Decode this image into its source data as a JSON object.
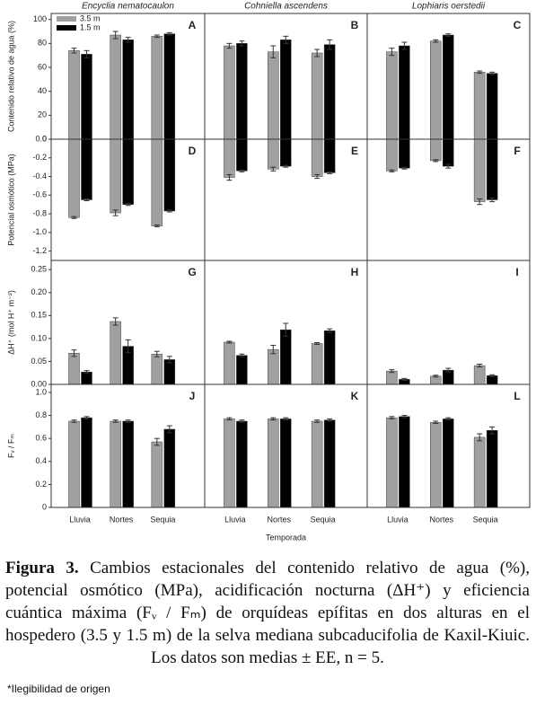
{
  "chart_data": [
    {
      "type": "bar",
      "label": "A",
      "title": "Encyclia nematocaulon",
      "ylabel": "Contenido relativo de agua (%)",
      "categories": [
        null,
        null,
        null
      ],
      "series": [
        {
          "name": "3.5 m",
          "color": "#a0a0a0",
          "values": [
            74,
            87,
            86
          ],
          "errors": [
            2,
            3,
            1
          ]
        },
        {
          "name": "1.5 m",
          "color": "#000000",
          "values": [
            71,
            83,
            88
          ],
          "errors": [
            3,
            2,
            1
          ]
        }
      ],
      "ylim": [
        0,
        105
      ],
      "yticks": [
        0,
        20,
        40,
        60,
        80,
        100
      ],
      "legend": "upper left"
    },
    {
      "type": "bar",
      "label": "B",
      "title": "Cohniella ascendens",
      "categories": [
        null,
        null,
        null
      ],
      "series": [
        {
          "color": "#a0a0a0",
          "values": [
            78,
            73,
            72
          ],
          "errors": [
            2,
            5,
            3
          ]
        },
        {
          "color": "#000000",
          "values": [
            80,
            83,
            79
          ],
          "errors": [
            2,
            3,
            4
          ]
        }
      ],
      "ylim": [
        0,
        105
      ]
    },
    {
      "type": "bar",
      "label": "C",
      "title": "Lophiaris oerstedii",
      "categories": [
        null,
        null,
        null
      ],
      "series": [
        {
          "color": "#a0a0a0",
          "values": [
            73,
            82,
            56
          ],
          "errors": [
            3,
            1,
            1
          ]
        },
        {
          "color": "#000000",
          "values": [
            78,
            87,
            55
          ],
          "errors": [
            3,
            1,
            1
          ]
        }
      ],
      "ylim": [
        0,
        105
      ]
    },
    {
      "type": "bar",
      "label": "D",
      "ylabel": "Potencial osmótico (MPa)",
      "categories": [
        null,
        null,
        null
      ],
      "series": [
        {
          "color": "#a0a0a0",
          "values": [
            -0.84,
            -0.79,
            -0.93
          ],
          "errors": [
            0.01,
            0.03,
            0.01
          ]
        },
        {
          "color": "#000000",
          "values": [
            -0.65,
            -0.7,
            -0.77
          ],
          "errors": [
            0.01,
            0.01,
            0.01
          ]
        }
      ],
      "ylim": [
        -1.3,
        0
      ],
      "yticks": [
        {
          "value": 0,
          "label": "0.0"
        },
        -0.2,
        -0.4,
        -0.6,
        -0.8,
        {
          "value": -1,
          "label": "-1.0"
        },
        -1.2
      ]
    },
    {
      "type": "bar",
      "label": "E",
      "categories": [
        null,
        null,
        null
      ],
      "series": [
        {
          "color": "#a0a0a0",
          "values": [
            -0.41,
            -0.32,
            -0.4
          ],
          "errors": [
            0.03,
            0.02,
            0.02
          ]
        },
        {
          "color": "#000000",
          "values": [
            -0.34,
            -0.29,
            -0.36
          ],
          "errors": [
            0.01,
            0.01,
            0.01
          ]
        }
      ],
      "ylim": [
        -1.3,
        0
      ]
    },
    {
      "type": "bar",
      "label": "F",
      "categories": [
        null,
        null,
        null
      ],
      "series": [
        {
          "color": "#a0a0a0",
          "values": [
            -0.34,
            -0.23,
            -0.67
          ],
          "errors": [
            0.01,
            0.01,
            0.03
          ]
        },
        {
          "color": "#000000",
          "values": [
            -0.31,
            -0.29,
            -0.65
          ],
          "errors": [
            0.01,
            0.02,
            0.02
          ]
        }
      ],
      "ylim": [
        -1.3,
        0
      ]
    },
    {
      "type": "bar",
      "label": "G",
      "ylabel": "ΔH⁺ (mol H⁺ m⁻²)",
      "categories": [
        null,
        null,
        null
      ],
      "series": [
        {
          "color": "#a0a0a0",
          "values": [
            0.068,
            0.137,
            0.066
          ],
          "errors": [
            0.007,
            0.008,
            0.006
          ]
        },
        {
          "color": "#000000",
          "values": [
            0.027,
            0.083,
            0.054
          ],
          "errors": [
            0.003,
            0.014,
            0.007
          ]
        }
      ],
      "ylim": [
        0,
        0.27
      ],
      "yticks": [
        {
          "value": 0,
          "label": "0.00"
        },
        0.05,
        {
          "value": 0.1,
          "label": "0.10"
        },
        0.15,
        {
          "value": 0.2,
          "label": "0.20"
        },
        0.25
      ]
    },
    {
      "type": "bar",
      "label": "H",
      "categories": [
        null,
        null,
        null
      ],
      "series": [
        {
          "color": "#a0a0a0",
          "values": [
            0.092,
            0.076,
            0.089
          ],
          "errors": [
            0.002,
            0.009,
            0.002
          ]
        },
        {
          "color": "#000000",
          "values": [
            0.063,
            0.119,
            0.117
          ],
          "errors": [
            0.003,
            0.014,
            0.004
          ]
        }
      ],
      "ylim": [
        0,
        0.27
      ]
    },
    {
      "type": "bar",
      "label": "I",
      "categories": [
        null,
        null,
        null
      ],
      "series": [
        {
          "color": "#a0a0a0",
          "values": [
            0.029,
            0.018,
            0.041
          ],
          "errors": [
            0.003,
            0.002,
            0.003
          ]
        },
        {
          "color": "#000000",
          "values": [
            0.011,
            0.031,
            0.019
          ],
          "errors": [
            0.002,
            0.004,
            0.002
          ]
        }
      ],
      "ylim": [
        0,
        0.27
      ]
    },
    {
      "type": "bar",
      "label": "J",
      "ylabel": "Fᵥ / Fₘ",
      "categories": [
        "Lluvia",
        "Nortes",
        "Sequia"
      ],
      "series": [
        {
          "color": "#a0a0a0",
          "values": [
            0.75,
            0.75,
            0.57
          ],
          "errors": [
            0.01,
            0.01,
            0.03
          ]
        },
        {
          "color": "#000000",
          "values": [
            0.78,
            0.75,
            0.68
          ],
          "errors": [
            0.01,
            0.01,
            0.03
          ]
        }
      ],
      "ylim": [
        0,
        1.07
      ],
      "yticks": [
        0,
        0.2,
        0.4,
        0.6,
        0.8,
        {
          "value": 1,
          "label": "1.0"
        }
      ]
    },
    {
      "type": "bar",
      "label": "K",
      "xlabel": "Temporada",
      "categories": [
        "Lluvia",
        "Nortes",
        "Sequia"
      ],
      "series": [
        {
          "color": "#a0a0a0",
          "values": [
            0.77,
            0.77,
            0.75
          ],
          "errors": [
            0.01,
            0.01,
            0.01
          ]
        },
        {
          "color": "#000000",
          "values": [
            0.75,
            0.77,
            0.76
          ],
          "errors": [
            0.01,
            0.01,
            0.01
          ]
        }
      ],
      "ylim": [
        0,
        1.07
      ]
    },
    {
      "type": "bar",
      "label": "L",
      "categories": [
        "Lluvia",
        "Nortes",
        "Sequia"
      ],
      "series": [
        {
          "color": "#a0a0a0",
          "values": [
            0.78,
            0.74,
            0.61
          ],
          "errors": [
            0.01,
            0.01,
            0.03
          ]
        },
        {
          "color": "#000000",
          "values": [
            0.79,
            0.77,
            0.67
          ],
          "errors": [
            0.01,
            0.01,
            0.03
          ]
        }
      ],
      "ylim": [
        0,
        1.07
      ]
    }
  ],
  "caption": {
    "label": "Figura 3.",
    "text": "Cambios estacionales del contenido relativo de agua (%), potencial osmótico (MPa), acidificación nocturna (ΔH⁺) y eficiencia cuántica máxima (Fᵥ / Fₘ) de orquídeas epífitas en dos alturas en el hospedero (3.5 y 1.5 m) de la selva mediana subcaducifolia de Kaxil-Kiuic. Los datos son medias ± EE, n = 5."
  },
  "note": "*Ilegibilidad de origen"
}
